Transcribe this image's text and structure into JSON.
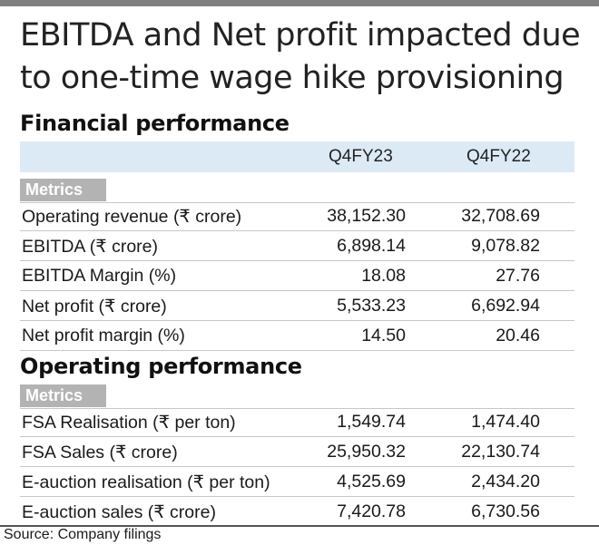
{
  "headline": "EBITDA and Net profit impacted due to one-time wage hike provisioning",
  "financial": {
    "title": "Financial performance",
    "columns": [
      "Q4FY23",
      "Q4FY22"
    ],
    "metrics_label": "Metrics",
    "rows": [
      {
        "label": "Operating revenue (₹ crore)",
        "q4fy23": "38,152.30",
        "q4fy22": "32,708.69"
      },
      {
        "label": "EBITDA (₹ crore)",
        "q4fy23": "6,898.14",
        "q4fy22": "9,078.82"
      },
      {
        "label": "EBITDA Margin (%)",
        "q4fy23": "18.08",
        "q4fy22": "27.76"
      },
      {
        "label": "Net profit (₹ crore)",
        "q4fy23": "5,533.23",
        "q4fy22": "6,692.94"
      },
      {
        "label": "Net profit margin (%)",
        "q4fy23": "14.50",
        "q4fy22": "20.46"
      }
    ]
  },
  "operating": {
    "title": "Operating performance",
    "metrics_label": "Metrics",
    "rows": [
      {
        "label": "FSA Realisation (₹ per ton)",
        "q4fy23": "1,549.74",
        "q4fy22": "1,474.40"
      },
      {
        "label": "FSA Sales (₹ crore)",
        "q4fy23": "25,950.32",
        "q4fy22": "22,130.74"
      },
      {
        "label": "E-auction realisation (₹ per ton)",
        "q4fy23": "4,525.69",
        "q4fy22": "2,434.20"
      },
      {
        "label": "E-auction sales (₹ crore)",
        "q4fy23": "7,420.78",
        "q4fy22": "6,730.56"
      }
    ]
  },
  "source": "Source: Company filings",
  "colors": {
    "header_band": "#dceaf6",
    "metrics_tag": "#b3b3b3",
    "top_bar": "#808080"
  }
}
